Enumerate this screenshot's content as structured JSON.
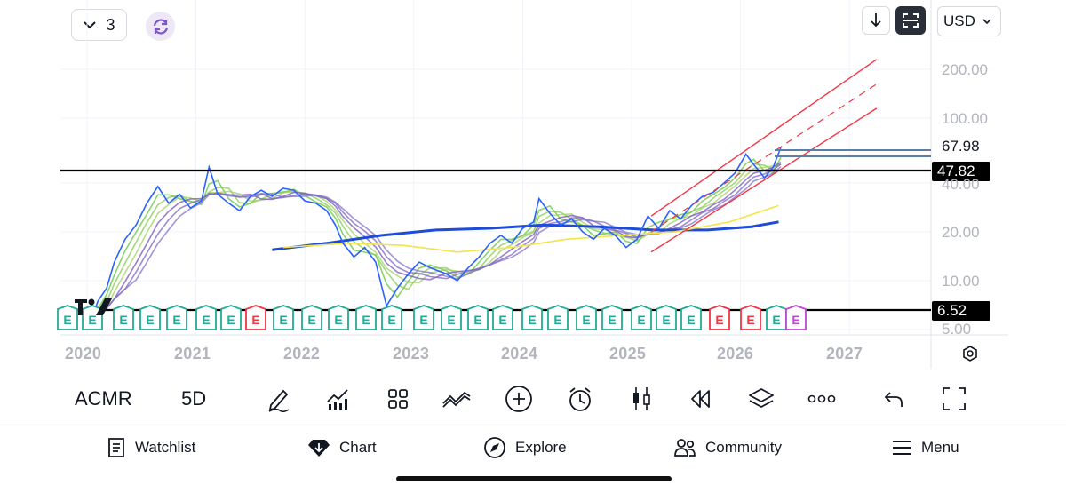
{
  "top_left": {
    "layout_count": "3",
    "chevron_icon": "chevron-down-icon",
    "sync_icon": "sync-icon"
  },
  "top_right": {
    "arrow_icon": "arrow-down-icon",
    "fit_icon": "fit-screen-icon",
    "currency": "USD"
  },
  "price_axis": {
    "scale": "log",
    "ticks": [
      "200.00",
      "100.00",
      "40.00",
      "20.00",
      "10.00",
      "5.00"
    ],
    "current_price": "67.98",
    "level_high": "47.82",
    "level_low": "6.52"
  },
  "time_axis": {
    "ticks": [
      "2020",
      "2021",
      "2022",
      "2023",
      "2024",
      "2025",
      "2026",
      "2027"
    ]
  },
  "earnings_markers": {
    "label": "E",
    "colors": {
      "beat": "#22ab94",
      "miss": "#f23645",
      "upcoming": "#c344d9"
    }
  },
  "watermark": "TV",
  "colors": {
    "price_line": "#2962ff",
    "slow_ma": "#1e4bd8",
    "yellow_ma": "#f2e44a",
    "channel": "#f23645",
    "level_line": "#000000",
    "price_lines_right": "#5b7fa6"
  },
  "toolbar": {
    "symbol": "ACMR",
    "interval": "5D",
    "tools": [
      "draw-icon",
      "indicators-icon",
      "layouts-icon",
      "compare-icon",
      "add-icon",
      "alert-icon",
      "chart-type-icon",
      "replay-icon",
      "layers-icon",
      "more-icon",
      "undo-icon",
      "fullscreen-icon"
    ]
  },
  "nav": {
    "watchlist": "Watchlist",
    "chart": "Chart",
    "explore": "Explore",
    "community": "Community",
    "menu": "Menu"
  }
}
